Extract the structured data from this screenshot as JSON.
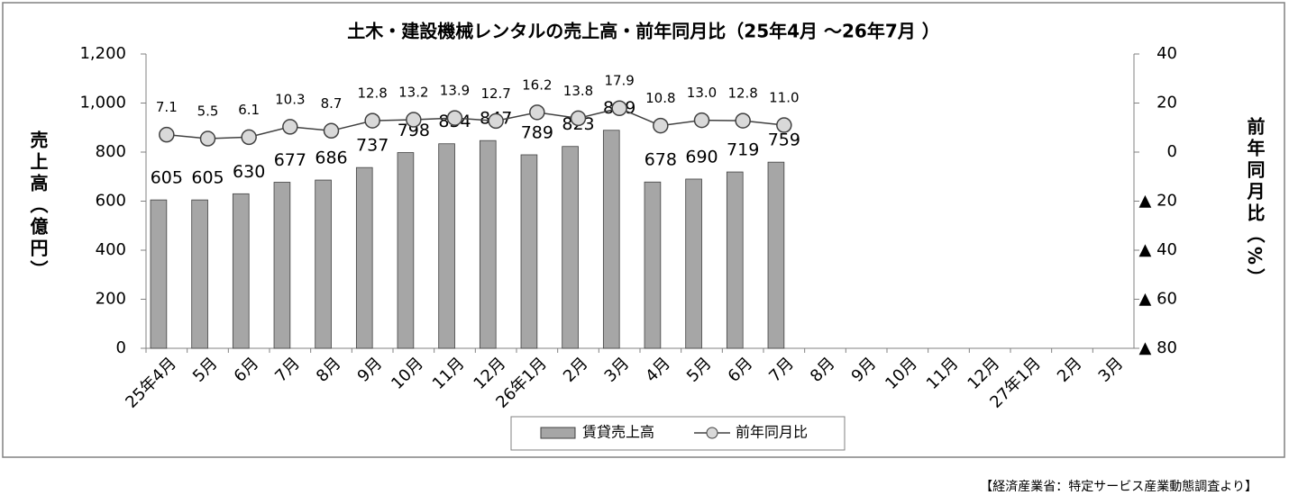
{
  "chart_data": {
    "type": "bar",
    "title": "土木・建設機械レンタルの売上高・前年同月比（25年4月 ～26年7月 ）",
    "y_label": "売上高（億円）",
    "y2_label": "前年同月比（%）",
    "note": "【経済産業省：特定サービス産業動態調査より】",
    "legend": "bottom",
    "categories": [
      "25年4月",
      "5月",
      "6月",
      "7月",
      "8月",
      "9月",
      "10月",
      "11月",
      "12月",
      "26年1月",
      "2月",
      "3月",
      "4月",
      "5月",
      "6月",
      "7月",
      "8月",
      "9月",
      "10月",
      "11月",
      "12月",
      "27年1月",
      "2月",
      "3月"
    ],
    "ylim": [
      0,
      1200
    ],
    "yticks": [
      0,
      200,
      400,
      600,
      800,
      {
        "value": 1000,
        "label": "1,000"
      },
      {
        "value": 1200,
        "label": "1,200"
      }
    ],
    "y2lim": [
      -80,
      40
    ],
    "y2ticks": [
      40,
      20,
      0,
      {
        "value": -20,
        "label": "▲ 20"
      },
      {
        "value": -40,
        "label": "▲ 40"
      },
      {
        "value": -60,
        "label": "▲ 60"
      },
      {
        "value": -80,
        "label": "▲ 80"
      }
    ],
    "series": [
      {
        "name": "賃貸売上高",
        "type": "bar",
        "color": "#a6a6a6",
        "values": [
          605,
          605,
          630,
          677,
          686,
          737,
          798,
          834,
          847,
          789,
          823,
          889,
          678,
          690,
          719,
          759,
          null,
          null,
          null,
          null,
          null,
          null,
          null,
          null
        ]
      },
      {
        "name": "前年同月比",
        "type": "line",
        "axis": "y2",
        "color": "#404040",
        "marker_color": "#d9d9d9",
        "values": [
          7.1,
          5.5,
          6.1,
          10.3,
          8.7,
          12.8,
          13.2,
          13.9,
          12.7,
          16.2,
          13.8,
          17.9,
          10.8,
          13.0,
          12.8,
          11.0,
          null,
          null,
          null,
          null,
          null,
          null,
          null,
          null
        ],
        "value_labels": [
          "7.1",
          "5.5",
          "6.1",
          "10.3",
          "8.7",
          "12.8",
          "13.2",
          "13.9",
          "12.7",
          "16.2",
          "13.8",
          "17.9",
          "10.8",
          "13.0",
          "12.8",
          "11.0",
          null,
          null,
          null,
          null,
          null,
          null,
          null,
          null
        ]
      }
    ]
  }
}
